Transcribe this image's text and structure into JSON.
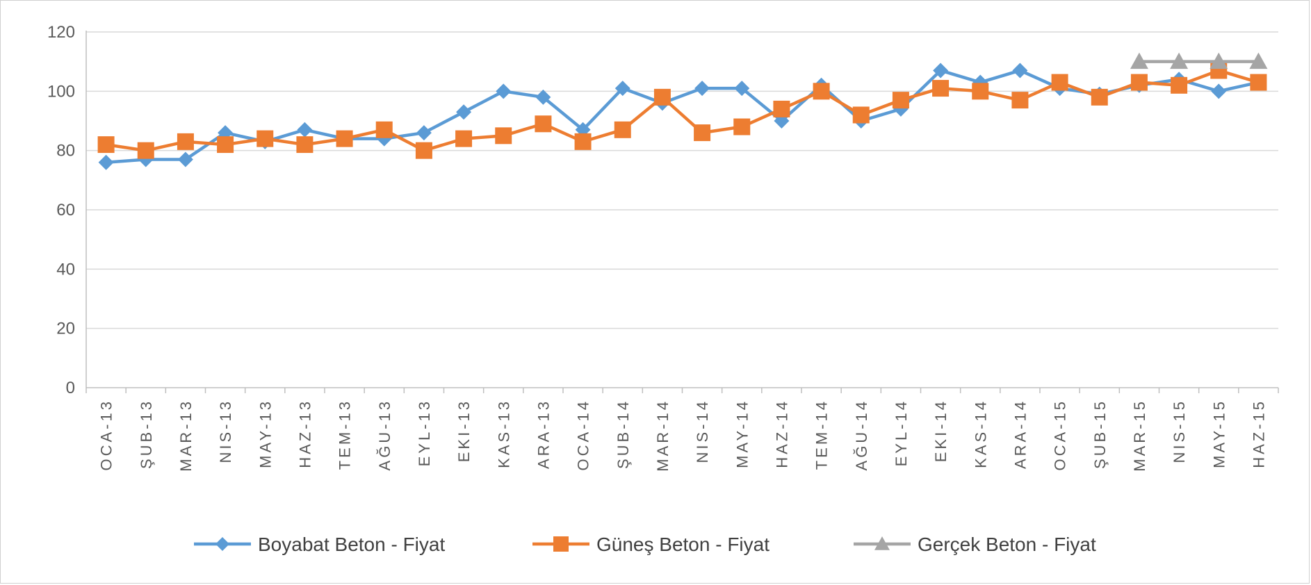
{
  "chart_data": {
    "type": "line",
    "categories": [
      "OCA-13",
      "ŞUB-13",
      "MAR-13",
      "NIS-13",
      "MAY-13",
      "HAZ-13",
      "TEM-13",
      "AĞU-13",
      "EYL-13",
      "EKI-13",
      "KAS-13",
      "ARA-13",
      "OCA-14",
      "ŞUB-14",
      "MAR-14",
      "NIS-14",
      "MAY-14",
      "HAZ-14",
      "TEM-14",
      "AĞU-14",
      "EYL-14",
      "EKI-14",
      "KAS-14",
      "ARA-14",
      "OCA-15",
      "ŞUB-15",
      "MAR-15",
      "NIS-15",
      "MAY-15",
      "HAZ-15"
    ],
    "series": [
      {
        "name": "Boyabat Beton - Fiyat",
        "color": "#5b9bd5",
        "marker": "diamond",
        "values": [
          76,
          77,
          77,
          86,
          83,
          87,
          84,
          84,
          86,
          93,
          100,
          98,
          87,
          101,
          96,
          101,
          101,
          90,
          102,
          90,
          94,
          107,
          103,
          107,
          101,
          99,
          102,
          104,
          100,
          103
        ]
      },
      {
        "name": "Güneş Beton - Fiyat",
        "color": "#ed7d31",
        "marker": "square",
        "values": [
          82,
          80,
          83,
          82,
          84,
          82,
          84,
          87,
          80,
          84,
          85,
          89,
          83,
          87,
          98,
          86,
          88,
          94,
          100,
          92,
          97,
          101,
          100,
          97,
          103,
          98,
          103,
          102,
          107,
          103
        ]
      },
      {
        "name": "Gerçek Beton - Fiyat",
        "color": "#a5a5a5",
        "marker": "triangle",
        "values": [
          null,
          null,
          null,
          null,
          null,
          null,
          null,
          null,
          null,
          null,
          null,
          null,
          null,
          null,
          null,
          null,
          null,
          null,
          null,
          null,
          null,
          null,
          null,
          null,
          null,
          null,
          110,
          110,
          110,
          110
        ]
      }
    ],
    "yticks": [
      "0",
      "20",
      "40",
      "60",
      "80",
      "100",
      "120"
    ],
    "ylim": [
      0,
      120
    ],
    "grid": true,
    "legend_position": "bottom"
  }
}
